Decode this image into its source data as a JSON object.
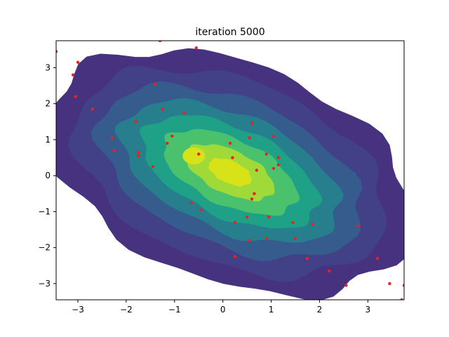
{
  "chart_data": {
    "type": "scatter",
    "title": "iteration 5000",
    "xlabel": "",
    "ylabel": "",
    "xlim": [
      -3.45,
      3.75
    ],
    "ylim": [
      -3.45,
      3.75
    ],
    "xticks": [
      -3,
      -2,
      -1,
      0,
      1,
      2,
      3
    ],
    "yticks": [
      -3,
      -2,
      -1,
      0,
      1,
      2,
      3
    ],
    "xtick_labels": [
      "−3",
      "−2",
      "−1",
      "0",
      "1",
      "2",
      "3"
    ],
    "ytick_labels": [
      "−3",
      "−2",
      "−1",
      "0",
      "1",
      "2",
      "3"
    ],
    "grid": false,
    "contour": {
      "colormap": "viridis",
      "center": [
        0.15,
        0.1
      ],
      "direction": [
        0.8,
        -0.6
      ],
      "levels": [
        {
          "semi_major": 4.2,
          "semi_minor": 2.85,
          "color": "#46327e"
        },
        {
          "semi_major": 3.6,
          "semi_minor": 2.4,
          "color": "#424086"
        },
        {
          "semi_major": 3.1,
          "semi_minor": 1.9,
          "color": "#365c8d"
        },
        {
          "semi_major": 2.6,
          "semi_minor": 1.5,
          "color": "#277f8e"
        },
        {
          "semi_major": 2.1,
          "semi_minor": 1.15,
          "color": "#1fa187"
        },
        {
          "semi_major": 1.6,
          "semi_minor": 0.85,
          "color": "#4ac16d"
        },
        {
          "semi_major": 1.05,
          "semi_minor": 0.55,
          "color": "#a0da39"
        },
        {
          "semi_major": 0.5,
          "semi_minor": 0.28,
          "color": "#d8e219"
        }
      ],
      "secondary_peak": {
        "x": -0.6,
        "y": 0.55,
        "color": "#d8e219"
      }
    },
    "series": [
      {
        "marker_color": "#e8231f",
        "points": [
          [
            -3.45,
            3.45
          ],
          [
            -3.0,
            3.15
          ],
          [
            -3.1,
            2.8
          ],
          [
            -3.05,
            2.2
          ],
          [
            -2.7,
            1.85
          ],
          [
            -1.3,
            3.75
          ],
          [
            -0.55,
            3.55
          ],
          [
            -1.4,
            2.55
          ],
          [
            -1.25,
            1.85
          ],
          [
            -0.8,
            1.75
          ],
          [
            -1.8,
            1.5
          ],
          [
            -1.05,
            1.1
          ],
          [
            -1.15,
            0.9
          ],
          [
            -2.3,
            1.05
          ],
          [
            -2.25,
            0.7
          ],
          [
            -1.75,
            0.65
          ],
          [
            -1.75,
            0.55
          ],
          [
            -1.45,
            0.25
          ],
          [
            -0.5,
            0.6
          ],
          [
            0.15,
            0.9
          ],
          [
            0.6,
            1.45
          ],
          [
            0.55,
            1.05
          ],
          [
            1.05,
            1.1
          ],
          [
            0.9,
            0.6
          ],
          [
            1.15,
            0.5
          ],
          [
            1.05,
            0.2
          ],
          [
            1.15,
            0.3
          ],
          [
            0.7,
            0.15
          ],
          [
            0.2,
            0.5
          ],
          [
            0.65,
            -0.5
          ],
          [
            0.6,
            -0.65
          ],
          [
            -0.65,
            -0.75
          ],
          [
            -0.45,
            -0.95
          ],
          [
            0.25,
            -1.3
          ],
          [
            0.5,
            -1.15
          ],
          [
            0.95,
            -1.15
          ],
          [
            0.55,
            -1.8
          ],
          [
            0.9,
            -1.75
          ],
          [
            1.45,
            -1.3
          ],
          [
            1.85,
            -1.35
          ],
          [
            1.5,
            -1.75
          ],
          [
            0.25,
            -2.25
          ],
          [
            1.75,
            -2.3
          ],
          [
            2.2,
            -2.65
          ],
          [
            2.55,
            -3.05
          ],
          [
            2.8,
            -1.4
          ],
          [
            3.2,
            -2.3
          ],
          [
            3.45,
            -3.0
          ],
          [
            3.75,
            -3.05
          ],
          [
            3.7,
            -3.45
          ]
        ]
      }
    ]
  }
}
